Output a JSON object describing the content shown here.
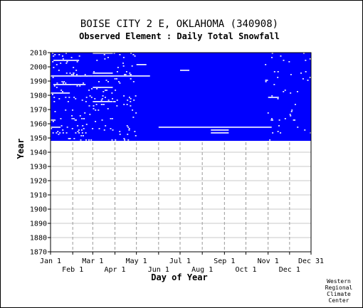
{
  "chart_data": {
    "type": "heatmap",
    "title": "BOISE CITY 2 E, OKLAHOMA   (340908)",
    "subtitle": "Observed Element : Daily Total Snowfall",
    "xlabel": "Day of Year",
    "ylabel": "Year",
    "x_range_days": [
      1,
      365
    ],
    "ylim": [
      1870,
      2010
    ],
    "y_ticks": [
      1870,
      1880,
      1890,
      1900,
      1910,
      1920,
      1930,
      1940,
      1950,
      1960,
      1970,
      1980,
      1990,
      2000,
      2010
    ],
    "x_ticks_top_row": [
      {
        "label": "Jan 1",
        "day": 1
      },
      {
        "label": "Mar 1",
        "day": 60
      },
      {
        "label": "May 1",
        "day": 121
      },
      {
        "label": "Jul 1",
        "day": 182
      },
      {
        "label": "Sep 1",
        "day": 244
      },
      {
        "label": "Nov 1",
        "day": 305
      },
      {
        "label": "Dec 31",
        "day": 365
      }
    ],
    "x_ticks_bottom_row": [
      {
        "label": "Feb 1",
        "day": 32
      },
      {
        "label": "Apr 1",
        "day": 91
      },
      {
        "label": "Jun 1",
        "day": 152
      },
      {
        "label": "Aug 1",
        "day": 213
      },
      {
        "label": "Oct 1",
        "day": 274
      },
      {
        "label": "Dec 1",
        "day": 335
      }
    ],
    "grid": true,
    "record_start_year": 1948,
    "record_end_year": 2010,
    "data_color": "#0000ff",
    "missing_color": "#ffffff",
    "missing_periods": [
      {
        "year": 1947,
        "start_day": 121,
        "end_day": 165
      },
      {
        "year": 1955,
        "start_day": 225,
        "end_day": 250
      },
      {
        "year": 1953,
        "start_day": 225,
        "end_day": 250
      },
      {
        "year": 1957,
        "start_day": 1,
        "end_day": 15
      },
      {
        "year": 1957,
        "start_day": 152,
        "end_day": 310
      },
      {
        "year": 1962,
        "start_day": 1,
        "end_day": 8
      },
      {
        "year": 1975,
        "start_day": 60,
        "end_day": 88
      },
      {
        "year": 1978,
        "start_day": 305,
        "end_day": 320
      },
      {
        "year": 1981,
        "start_day": 1,
        "end_day": 28
      },
      {
        "year": 1985,
        "start_day": 60,
        "end_day": 88
      },
      {
        "year": 1987,
        "start_day": 5,
        "end_day": 50
      },
      {
        "year": 1993,
        "start_day": 1,
        "end_day": 60
      },
      {
        "year": 1993,
        "start_day": 60,
        "end_day": 140
      },
      {
        "year": 1995,
        "start_day": 60,
        "end_day": 88
      },
      {
        "year": 1997,
        "start_day": 182,
        "end_day": 195
      },
      {
        "year": 2001,
        "start_day": 121,
        "end_day": 135
      },
      {
        "year": 2004,
        "start_day": 5,
        "end_day": 40
      },
      {
        "year": 2009,
        "start_day": 60,
        "end_day": 88
      }
    ]
  },
  "credit": [
    "Western",
    "Regional",
    "Climate",
    "Center"
  ]
}
